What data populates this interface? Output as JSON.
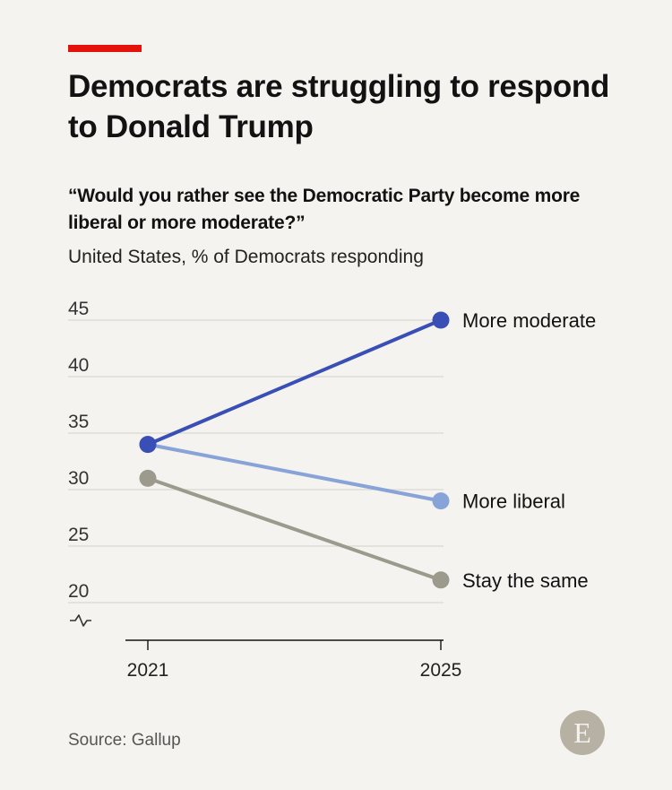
{
  "title": "Democrats are struggling to respond to Donald Trump",
  "subtitle": "“Would you rather see the Democratic Party become more liberal or more moderate?”",
  "caption": "United States, % of Democrats responding",
  "source": "Source: Gallup",
  "logo_text": "E",
  "colors": {
    "accent": "#e3120b",
    "background": "#f4f3ef",
    "more_moderate": "#3a4fb5",
    "more_liberal": "#88a3d8",
    "stay_the_same": "#9b9a8c",
    "grid": "#d9d8d2"
  },
  "chart_data": {
    "type": "line",
    "x": [
      "2021",
      "2025"
    ],
    "ylim": [
      20,
      45
    ],
    "yticks": [
      20,
      25,
      30,
      35,
      40,
      45
    ],
    "axis_break": true,
    "grid": true,
    "legend": "direct-labels-right",
    "series": [
      {
        "name": "More moderate",
        "values": [
          34,
          45
        ],
        "color": "#3a4fb5"
      },
      {
        "name": "More liberal",
        "values": [
          34,
          29
        ],
        "color": "#88a3d8"
      },
      {
        "name": "Stay the same",
        "values": [
          31,
          22
        ],
        "color": "#9b9a8c"
      }
    ]
  }
}
